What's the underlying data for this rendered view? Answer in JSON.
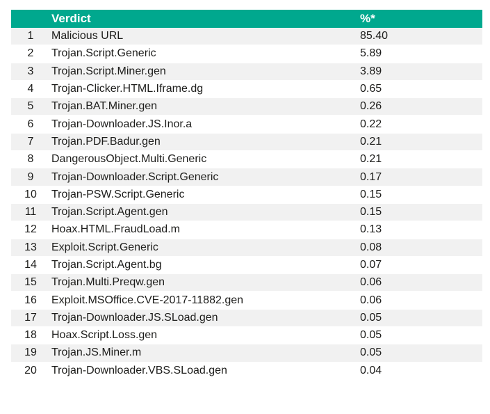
{
  "header": {
    "num_label": "",
    "verdict_label": "Verdict",
    "percent_label": "%*"
  },
  "rows": [
    {
      "num": "1",
      "verdict": "Malicious URL",
      "percent": "85.40"
    },
    {
      "num": "2",
      "verdict": "Trojan.Script.Generic",
      "percent": "5.89"
    },
    {
      "num": "3",
      "verdict": "Trojan.Script.Miner.gen",
      "percent": "3.89"
    },
    {
      "num": "4",
      "verdict": "Trojan-Clicker.HTML.Iframe.dg",
      "percent": "0.65"
    },
    {
      "num": "5",
      "verdict": "Trojan.BAT.Miner.gen",
      "percent": "0.26"
    },
    {
      "num": "6",
      "verdict": "Trojan-Downloader.JS.Inor.a",
      "percent": "0.22"
    },
    {
      "num": "7",
      "verdict": "Trojan.PDF.Badur.gen",
      "percent": "0.21"
    },
    {
      "num": "8",
      "verdict": "DangerousObject.Multi.Generic",
      "percent": "0.21"
    },
    {
      "num": "9",
      "verdict": "Trojan-Downloader.Script.Generic",
      "percent": "0.17"
    },
    {
      "num": "10",
      "verdict": "Trojan-PSW.Script.Generic",
      "percent": "0.15"
    },
    {
      "num": "11",
      "verdict": "Trojan.Script.Agent.gen",
      "percent": "0.15"
    },
    {
      "num": "12",
      "verdict": "Hoax.HTML.FraudLoad.m",
      "percent": "0.13"
    },
    {
      "num": "13",
      "verdict": "Exploit.Script.Generic",
      "percent": "0.08"
    },
    {
      "num": "14",
      "verdict": "Trojan.Script.Agent.bg",
      "percent": "0.07"
    },
    {
      "num": "15",
      "verdict": "Trojan.Multi.Preqw.gen",
      "percent": "0.06"
    },
    {
      "num": "16",
      "verdict": "Exploit.MSOffice.CVE-2017-11882.gen",
      "percent": "0.06"
    },
    {
      "num": "17",
      "verdict": "Trojan-Downloader.JS.SLoad.gen",
      "percent": "0.05"
    },
    {
      "num": "18",
      "verdict": "Hoax.Script.Loss.gen",
      "percent": "0.05"
    },
    {
      "num": "19",
      "verdict": "Trojan.JS.Miner.m",
      "percent": "0.05"
    },
    {
      "num": "20",
      "verdict": "Trojan-Downloader.VBS.SLoad.gen",
      "percent": "0.04"
    }
  ],
  "colors": {
    "header_bg": "#00a88e",
    "header_text": "#ffffff",
    "stripe": "#f1f1f1",
    "text": "#1d1d1b"
  }
}
